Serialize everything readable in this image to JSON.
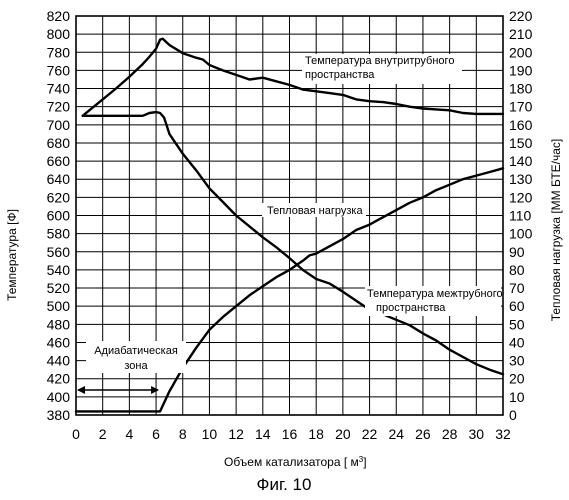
{
  "figure": {
    "caption": "Фиг. 10"
  },
  "chart_data": {
    "type": "line",
    "xlabel": "Объем катализатора [ м",
    "xlabel_sup": "3",
    "xlabel_end": "]",
    "ylabel_left": "Температура [Ф]",
    "ylabel_right": "Тепловая нагрузка [ММ БТЕ/час]",
    "xlim": [
      0,
      32
    ],
    "ylim_left": [
      380,
      820
    ],
    "ylim_right": [
      0,
      220
    ],
    "grid": true,
    "x_ticks": [
      "0",
      "2",
      "4",
      "6",
      "8",
      "10",
      "12",
      "14",
      "16",
      "18",
      "20",
      "22",
      "24",
      "26",
      "28",
      "30",
      "32"
    ],
    "y_left_ticks": [
      "380",
      "400",
      "420",
      "440",
      "460",
      "480",
      "500",
      "520",
      "540",
      "560",
      "580",
      "600",
      "620",
      "640",
      "660",
      "680",
      "700",
      "720",
      "740",
      "760",
      "780",
      "800",
      "820"
    ],
    "y_right_ticks": [
      "0",
      "10",
      "20",
      "30",
      "40",
      "50",
      "60",
      "70",
      "80",
      "90",
      "100",
      "110",
      "120",
      "130",
      "140",
      "150",
      "160",
      "170",
      "180",
      "190",
      "200",
      "210",
      "220"
    ],
    "series": [
      {
        "name": "Температура внутритрубного пространства",
        "name_lines": [
          "Температура внутритрубного",
          "пространства"
        ],
        "axis": "left",
        "x": [
          0.5,
          1,
          2,
          3,
          4,
          5,
          5.5,
          6,
          6.3,
          6.5,
          7,
          8,
          9,
          9.5,
          10,
          11,
          12,
          13,
          14,
          15,
          16,
          17,
          18,
          19,
          20,
          21,
          22,
          23,
          24,
          25,
          26,
          27,
          28,
          29,
          30,
          31,
          32
        ],
        "y": [
          710,
          716,
          728,
          740,
          753,
          767,
          775,
          784,
          794,
          795,
          788,
          779,
          774,
          772,
          766,
          760,
          755,
          750,
          752,
          748,
          744,
          739,
          737,
          735,
          733,
          728,
          726,
          725,
          723,
          720,
          718,
          717,
          716,
          713,
          712,
          712,
          712
        ]
      },
      {
        "name": "Температура межтрубного пространства",
        "name_lines": [
          "Температура межтрубного",
          "пространства"
        ],
        "axis": "left",
        "x": [
          0.5,
          2,
          4,
          5,
          5.5,
          6,
          6.3,
          6.6,
          7,
          8,
          9,
          10,
          11,
          12,
          13,
          14,
          15,
          16,
          17,
          18,
          19,
          20,
          21,
          22,
          23,
          24,
          25,
          26,
          27,
          28,
          29,
          30,
          31,
          32
        ],
        "y": [
          710,
          710,
          710,
          710,
          713,
          714,
          713,
          708,
          690,
          668,
          650,
          630,
          615,
          600,
          588,
          576,
          565,
          553,
          540,
          530,
          525,
          516,
          506,
          496,
          491,
          485,
          479,
          470,
          462,
          452,
          444,
          436,
          430,
          425
        ]
      },
      {
        "name": "Тепловая нагрузка",
        "name_lines": [
          "Тепловая нагрузка"
        ],
        "axis": "right",
        "x": [
          0,
          1,
          2,
          3,
          4,
          5,
          6,
          6.3,
          7,
          8,
          9,
          10,
          11,
          12,
          13,
          14,
          15,
          16,
          17,
          17.5,
          18,
          19,
          20,
          21,
          22,
          23,
          24,
          25,
          26,
          27,
          28,
          29,
          30,
          31,
          32
        ],
        "y": [
          2,
          2,
          2,
          2,
          2,
          2,
          2,
          2,
          13,
          26,
          37,
          47,
          54,
          60,
          66,
          71,
          76,
          80,
          85,
          88,
          89,
          93,
          97,
          102,
          105,
          109,
          113,
          117,
          120,
          124,
          127,
          130,
          132,
          134,
          136
        ]
      }
    ],
    "annotations": {
      "adiabatic_label_lines": [
        "Адиабатическая",
        "зона"
      ],
      "adiabatic_range": [
        0,
        6.3
      ]
    }
  }
}
